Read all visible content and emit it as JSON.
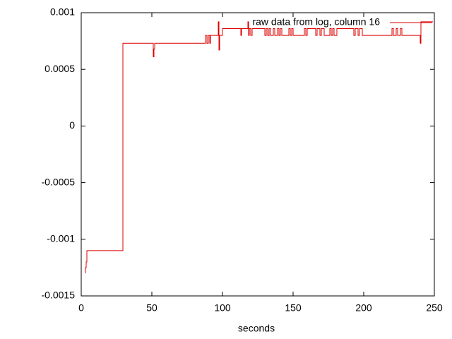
{
  "chart_data": {
    "type": "line",
    "xlabel": "seconds",
    "xlim": [
      0,
      250
    ],
    "xticks": [
      0,
      50,
      100,
      150,
      200,
      250
    ],
    "ylim": [
      -0.0015,
      0.001
    ],
    "yticks": [
      -0.0015,
      -0.001,
      -0.0005,
      0,
      0.0005,
      0.001
    ],
    "legend": "top-right",
    "series": [
      {
        "name": "raw data from log, column 16",
        "color": "#dd0000",
        "x": [
          3,
          3,
          3.5,
          3.5,
          4,
          4,
          29.5,
          29.5,
          51,
          51,
          51.5,
          51.5,
          52,
          52,
          88,
          88,
          89,
          89,
          90,
          90,
          91,
          91,
          91.5,
          91.5,
          97,
          97,
          97.5,
          97.5,
          98,
          98,
          100,
          100,
          113,
          113,
          113.5,
          113.5,
          118,
          118,
          118.5,
          118.5,
          119,
          119,
          120,
          120,
          121,
          121,
          130,
          130,
          131,
          131,
          132,
          132,
          133,
          133,
          134,
          134,
          136,
          136,
          137,
          137,
          139,
          139,
          140,
          140,
          141,
          141,
          142,
          142,
          147,
          147,
          148,
          148,
          149,
          149,
          150,
          150,
          158,
          158,
          159,
          159,
          160,
          160,
          166,
          166,
          167,
          167,
          169,
          169,
          170,
          170,
          172,
          172,
          176,
          176,
          177,
          177,
          178,
          178,
          179,
          179,
          181,
          181,
          193,
          193,
          194,
          194,
          196,
          196,
          197,
          197,
          199,
          199,
          200,
          200,
          220,
          220,
          221,
          221,
          223,
          223,
          224,
          224,
          226,
          226,
          227,
          227,
          240,
          240,
          240.5,
          240.5,
          249
        ],
        "y": [
          -0.0013,
          -0.00125,
          -0.00125,
          -0.0012,
          -0.0012,
          -0.0011,
          -0.0011,
          0.00073,
          0.00073,
          0.00061,
          0.00061,
          0.00068,
          0.00068,
          0.00073,
          0.00073,
          0.0008,
          0.0008,
          0.00073,
          0.00073,
          0.0008,
          0.0008,
          0.00073,
          0.00073,
          0.0008,
          0.0008,
          0.00092,
          0.00092,
          0.00067,
          0.00067,
          0.0008,
          0.0008,
          0.00086,
          0.00086,
          0.0008,
          0.0008,
          0.00086,
          0.00086,
          0.00092,
          0.00092,
          0.0008,
          0.0008,
          0.00086,
          0.00086,
          0.0008,
          0.0008,
          0.00086,
          0.00086,
          0.0008,
          0.0008,
          0.00086,
          0.00086,
          0.0008,
          0.0008,
          0.00086,
          0.00086,
          0.0008,
          0.0008,
          0.00086,
          0.00086,
          0.0008,
          0.0008,
          0.00086,
          0.00086,
          0.0008,
          0.0008,
          0.00086,
          0.00086,
          0.0008,
          0.0008,
          0.00086,
          0.00086,
          0.0008,
          0.0008,
          0.00086,
          0.00086,
          0.0008,
          0.0008,
          0.00086,
          0.00086,
          0.0008,
          0.0008,
          0.00086,
          0.00086,
          0.0008,
          0.0008,
          0.00086,
          0.00086,
          0.0008,
          0.0008,
          0.00086,
          0.00086,
          0.0008,
          0.0008,
          0.00086,
          0.00086,
          0.0008,
          0.0008,
          0.00086,
          0.00086,
          0.0008,
          0.0008,
          0.00086,
          0.00086,
          0.0008,
          0.0008,
          0.00086,
          0.00086,
          0.0008,
          0.0008,
          0.00086,
          0.00086,
          0.0008,
          0.0008,
          0.0008,
          0.0008,
          0.00086,
          0.00086,
          0.0008,
          0.0008,
          0.00086,
          0.00086,
          0.0008,
          0.0008,
          0.00086,
          0.00086,
          0.0008,
          0.0008,
          0.00073,
          0.00073,
          0.00092,
          0.00092
        ]
      }
    ]
  }
}
